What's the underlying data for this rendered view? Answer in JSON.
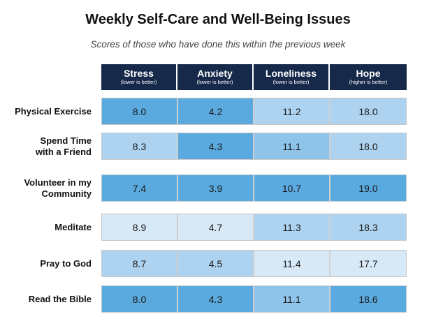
{
  "chart_data": {
    "type": "heatmap",
    "title": "Weekly Self-Care and Well-Being Issues",
    "subtitle": "Scores of those who have done this within the previous week",
    "columns": [
      {
        "name": "Stress",
        "note": "(lower is better)"
      },
      {
        "name": "Anxiety",
        "note": "(lower is better)"
      },
      {
        "name": "Loneliness",
        "note": "(lower is better)"
      },
      {
        "name": "Hope",
        "note": "(higher is better)"
      }
    ],
    "rows": [
      {
        "label_lines": [
          "Physical Exercise"
        ],
        "values": [
          "8.0",
          "4.2",
          "11.2",
          "18.0"
        ]
      },
      {
        "label_lines": [
          "Spend Time",
          "with a Friend"
        ],
        "values": [
          "8.3",
          "4.3",
          "11.1",
          "18.0"
        ]
      },
      {
        "label_lines": [
          "Volunteer in my",
          "Community"
        ],
        "values": [
          "7.4",
          "3.9",
          "10.7",
          "19.0"
        ]
      },
      {
        "label_lines": [
          "Meditate"
        ],
        "values": [
          "8.9",
          "4.7",
          "11.3",
          "18.3"
        ]
      },
      {
        "label_lines": [
          "Pray to God"
        ],
        "values": [
          "8.7",
          "4.5",
          "11.4",
          "17.7"
        ]
      },
      {
        "label_lines": [
          "Read the Bible"
        ],
        "values": [
          "8.0",
          "4.3",
          "11.1",
          "18.6"
        ]
      }
    ],
    "cell_shades": [
      [
        "mid",
        "mid",
        "pale",
        "pale"
      ],
      [
        "pale",
        "mid",
        "light",
        "pale"
      ],
      [
        "mid",
        "mid",
        "mid",
        "mid"
      ],
      [
        "lightest",
        "lightest",
        "pale",
        "pale"
      ],
      [
        "pale",
        "pale",
        "lightest",
        "lightest"
      ],
      [
        "mid",
        "mid",
        "light",
        "mid"
      ]
    ],
    "colors": {
      "header_bg": "#16294a",
      "header_text": "#ffffff",
      "mid": "#5aaadf",
      "light": "#8ec4ea",
      "pale": "#aed3f0",
      "lightest": "#d7e8f7"
    }
  }
}
